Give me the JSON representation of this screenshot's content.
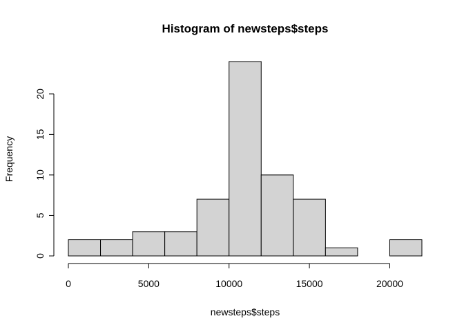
{
  "chart_data": {
    "type": "bar",
    "title": "Histogram of newsteps$steps",
    "xlabel": "newsteps$steps",
    "ylabel": "Frequency",
    "bins": [
      {
        "x0": 0,
        "x1": 2000,
        "count": 2
      },
      {
        "x0": 2000,
        "x1": 4000,
        "count": 2
      },
      {
        "x0": 4000,
        "x1": 6000,
        "count": 3
      },
      {
        "x0": 6000,
        "x1": 8000,
        "count": 3
      },
      {
        "x0": 8000,
        "x1": 10000,
        "count": 7
      },
      {
        "x0": 10000,
        "x1": 12000,
        "count": 24
      },
      {
        "x0": 12000,
        "x1": 14000,
        "count": 10
      },
      {
        "x0": 14000,
        "x1": 16000,
        "count": 7
      },
      {
        "x0": 16000,
        "x1": 18000,
        "count": 1
      },
      {
        "x0": 18000,
        "x1": 20000,
        "count": 0
      },
      {
        "x0": 20000,
        "x1": 22000,
        "count": 2
      }
    ],
    "xticks": [
      0,
      5000,
      10000,
      15000,
      20000
    ],
    "yticks": [
      0,
      5,
      10,
      15,
      20
    ],
    "xlim": [
      0,
      22000
    ],
    "ylim": [
      0,
      24
    ],
    "grid": false,
    "bar_fill": "#d3d3d3",
    "bar_stroke": "#000000"
  }
}
